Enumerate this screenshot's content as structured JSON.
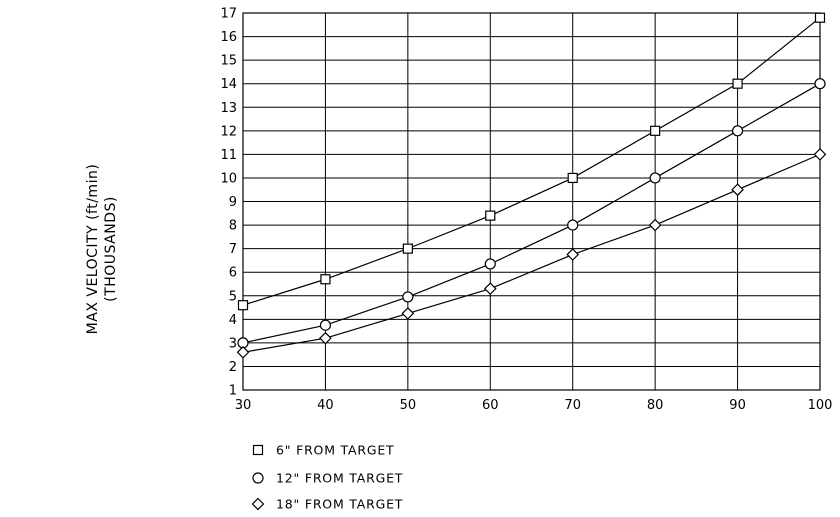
{
  "chart_data": {
    "type": "line",
    "title": "",
    "xlabel": "",
    "ylabel": [
      "MAX VELOCITY (ft/min)",
      "(THOUSANDS)"
    ],
    "x": [
      30,
      40,
      50,
      60,
      70,
      80,
      90,
      100
    ],
    "xlim": [
      30,
      100
    ],
    "ylim": [
      1,
      17
    ],
    "xticks": [
      "30",
      "40",
      "50",
      "60",
      "70",
      "80",
      "90",
      "100"
    ],
    "yticks": [
      "1",
      "2",
      "3",
      "4",
      "5",
      "6",
      "7",
      "8",
      "9",
      "10",
      "11",
      "12",
      "13",
      "14",
      "15",
      "16",
      "17"
    ],
    "grid": true,
    "legend_position": "bottom-left",
    "series": [
      {
        "name": "6\" FROM TARGET",
        "marker": "square",
        "values": [
          4.6,
          5.7,
          7.0,
          8.4,
          10.0,
          12.0,
          14.0,
          16.8
        ]
      },
      {
        "name": "12\" FROM TARGET",
        "marker": "circle",
        "values": [
          3.0,
          3.75,
          4.95,
          6.35,
          8.0,
          10.0,
          12.0,
          14.0
        ]
      },
      {
        "name": "18\" FROM TARGET",
        "marker": "diamond",
        "values": [
          2.6,
          3.2,
          4.25,
          5.3,
          6.75,
          8.0,
          9.5,
          11.0
        ]
      }
    ]
  }
}
